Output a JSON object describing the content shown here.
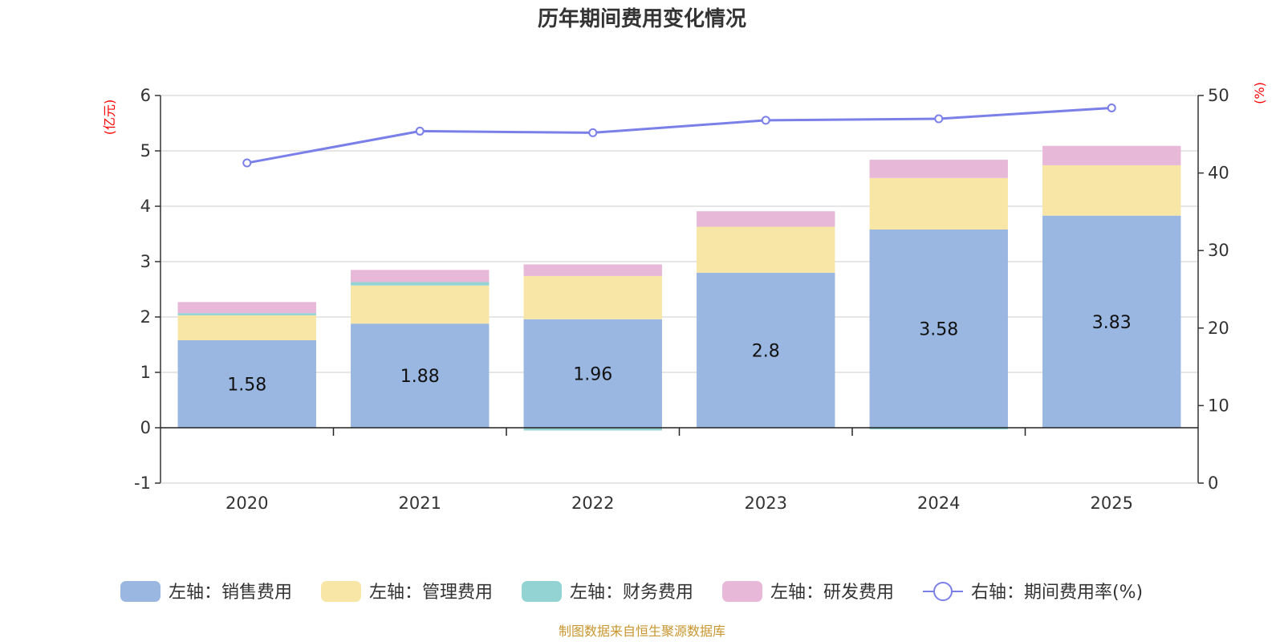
{
  "chart_data": {
    "type": "bar",
    "title": "历年期间费用变化情况",
    "categories": [
      "2020",
      "2021",
      "2022",
      "2023",
      "2024",
      "2025"
    ],
    "left_axis": {
      "unit": "(亿元)",
      "min": -1,
      "max": 6,
      "ticks": [
        "-1",
        "0",
        "1",
        "2",
        "3",
        "4",
        "5",
        "6"
      ]
    },
    "right_axis": {
      "unit": "(%)",
      "min": 0,
      "max": 50,
      "ticks": [
        "0",
        "10",
        "20",
        "30",
        "40",
        "50"
      ]
    },
    "series": [
      {
        "name": "左轴：销售费用",
        "axis": "left",
        "stack": true,
        "color": "#9ab7e1",
        "values": [
          1.58,
          1.88,
          1.96,
          2.8,
          3.58,
          3.83
        ],
        "labels": [
          "1.58",
          "1.88",
          "1.96",
          "2.8",
          "3.58",
          "3.83"
        ]
      },
      {
        "name": "左轴：管理费用",
        "axis": "left",
        "stack": true,
        "color": "#f7e6a5",
        "values": [
          0.45,
          0.69,
          0.78,
          0.83,
          0.93,
          0.91
        ]
      },
      {
        "name": "左轴：财务费用",
        "axis": "left",
        "stack": true,
        "color": "#93d3d4",
        "values": [
          0.04,
          0.06,
          -0.05,
          0.0,
          -0.03,
          0.0
        ]
      },
      {
        "name": "左轴：研发费用",
        "axis": "left",
        "stack": true,
        "color": "#e8b8d8",
        "values": [
          0.2,
          0.22,
          0.21,
          0.28,
          0.33,
          0.35
        ]
      },
      {
        "name": "右轴：期间费用率(%)",
        "axis": "right",
        "type": "line",
        "color": "#7b7fe8",
        "values": [
          41.3,
          45.4,
          45.2,
          46.8,
          47.0,
          48.4
        ]
      }
    ],
    "grid": true,
    "legend": "bottom-center"
  },
  "footer": {
    "source": "制图数据来自恒生聚源数据库"
  }
}
